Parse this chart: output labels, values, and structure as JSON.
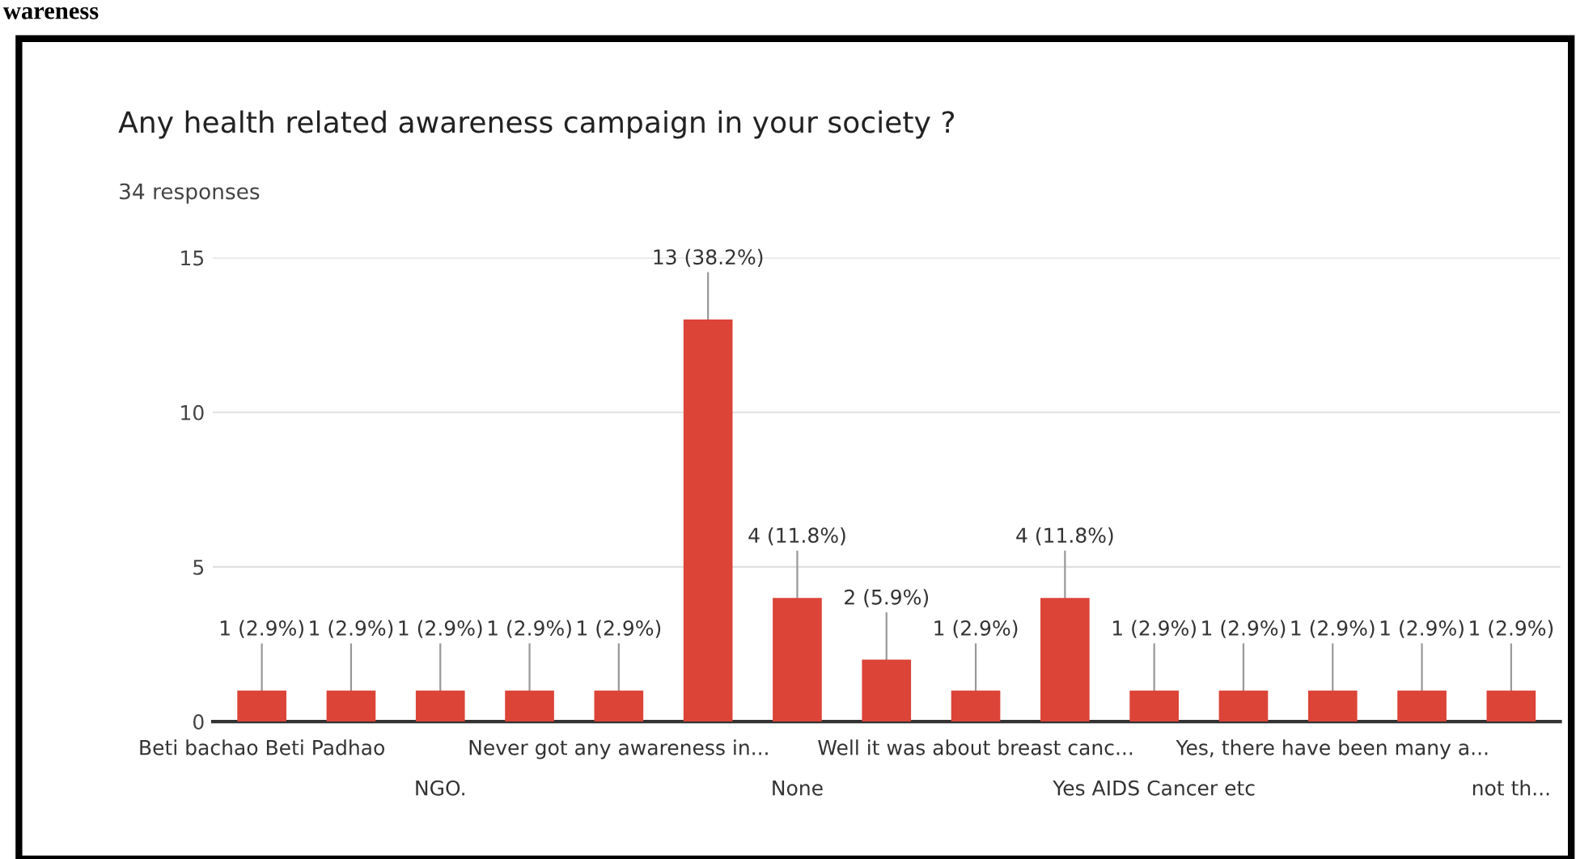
{
  "chart_data": {
    "type": "bar",
    "title": "Any health related awareness campaign in your society ?",
    "subtitle": "34 responses",
    "annotations": [
      "wareness"
    ],
    "categories": [
      "Beti bachao Beti Padhao",
      null,
      "NGO.",
      null,
      "Never got any awareness in...",
      null,
      "None",
      null,
      "Well it was about breast canc...",
      null,
      "Yes AIDS Cancer etc",
      null,
      "Yes, there have been many a...",
      null,
      "not th..."
    ],
    "values": [
      1,
      1,
      1,
      1,
      1,
      13,
      4,
      2,
      1,
      4,
      1,
      1,
      1,
      1,
      1
    ],
    "value_labels": [
      "1 (2.9%)",
      "1 (2.9%)",
      "1 (2.9%)",
      "1 (2.9%)",
      "1 (2.9%)",
      "13 (38.2%)",
      "4 (11.8%)",
      "2 (5.9%)",
      "1 (2.9%)",
      "4 (11.8%)",
      "1 (2.9%)",
      "1 (2.9%)",
      "1 (2.9%)",
      "1 (2.9%)",
      "1 (2.9%)"
    ],
    "color": "#db4437",
    "ylim": [
      0,
      15
    ],
    "yticks": [
      0,
      5,
      10,
      15
    ],
    "grid": "y",
    "legend": false
  }
}
